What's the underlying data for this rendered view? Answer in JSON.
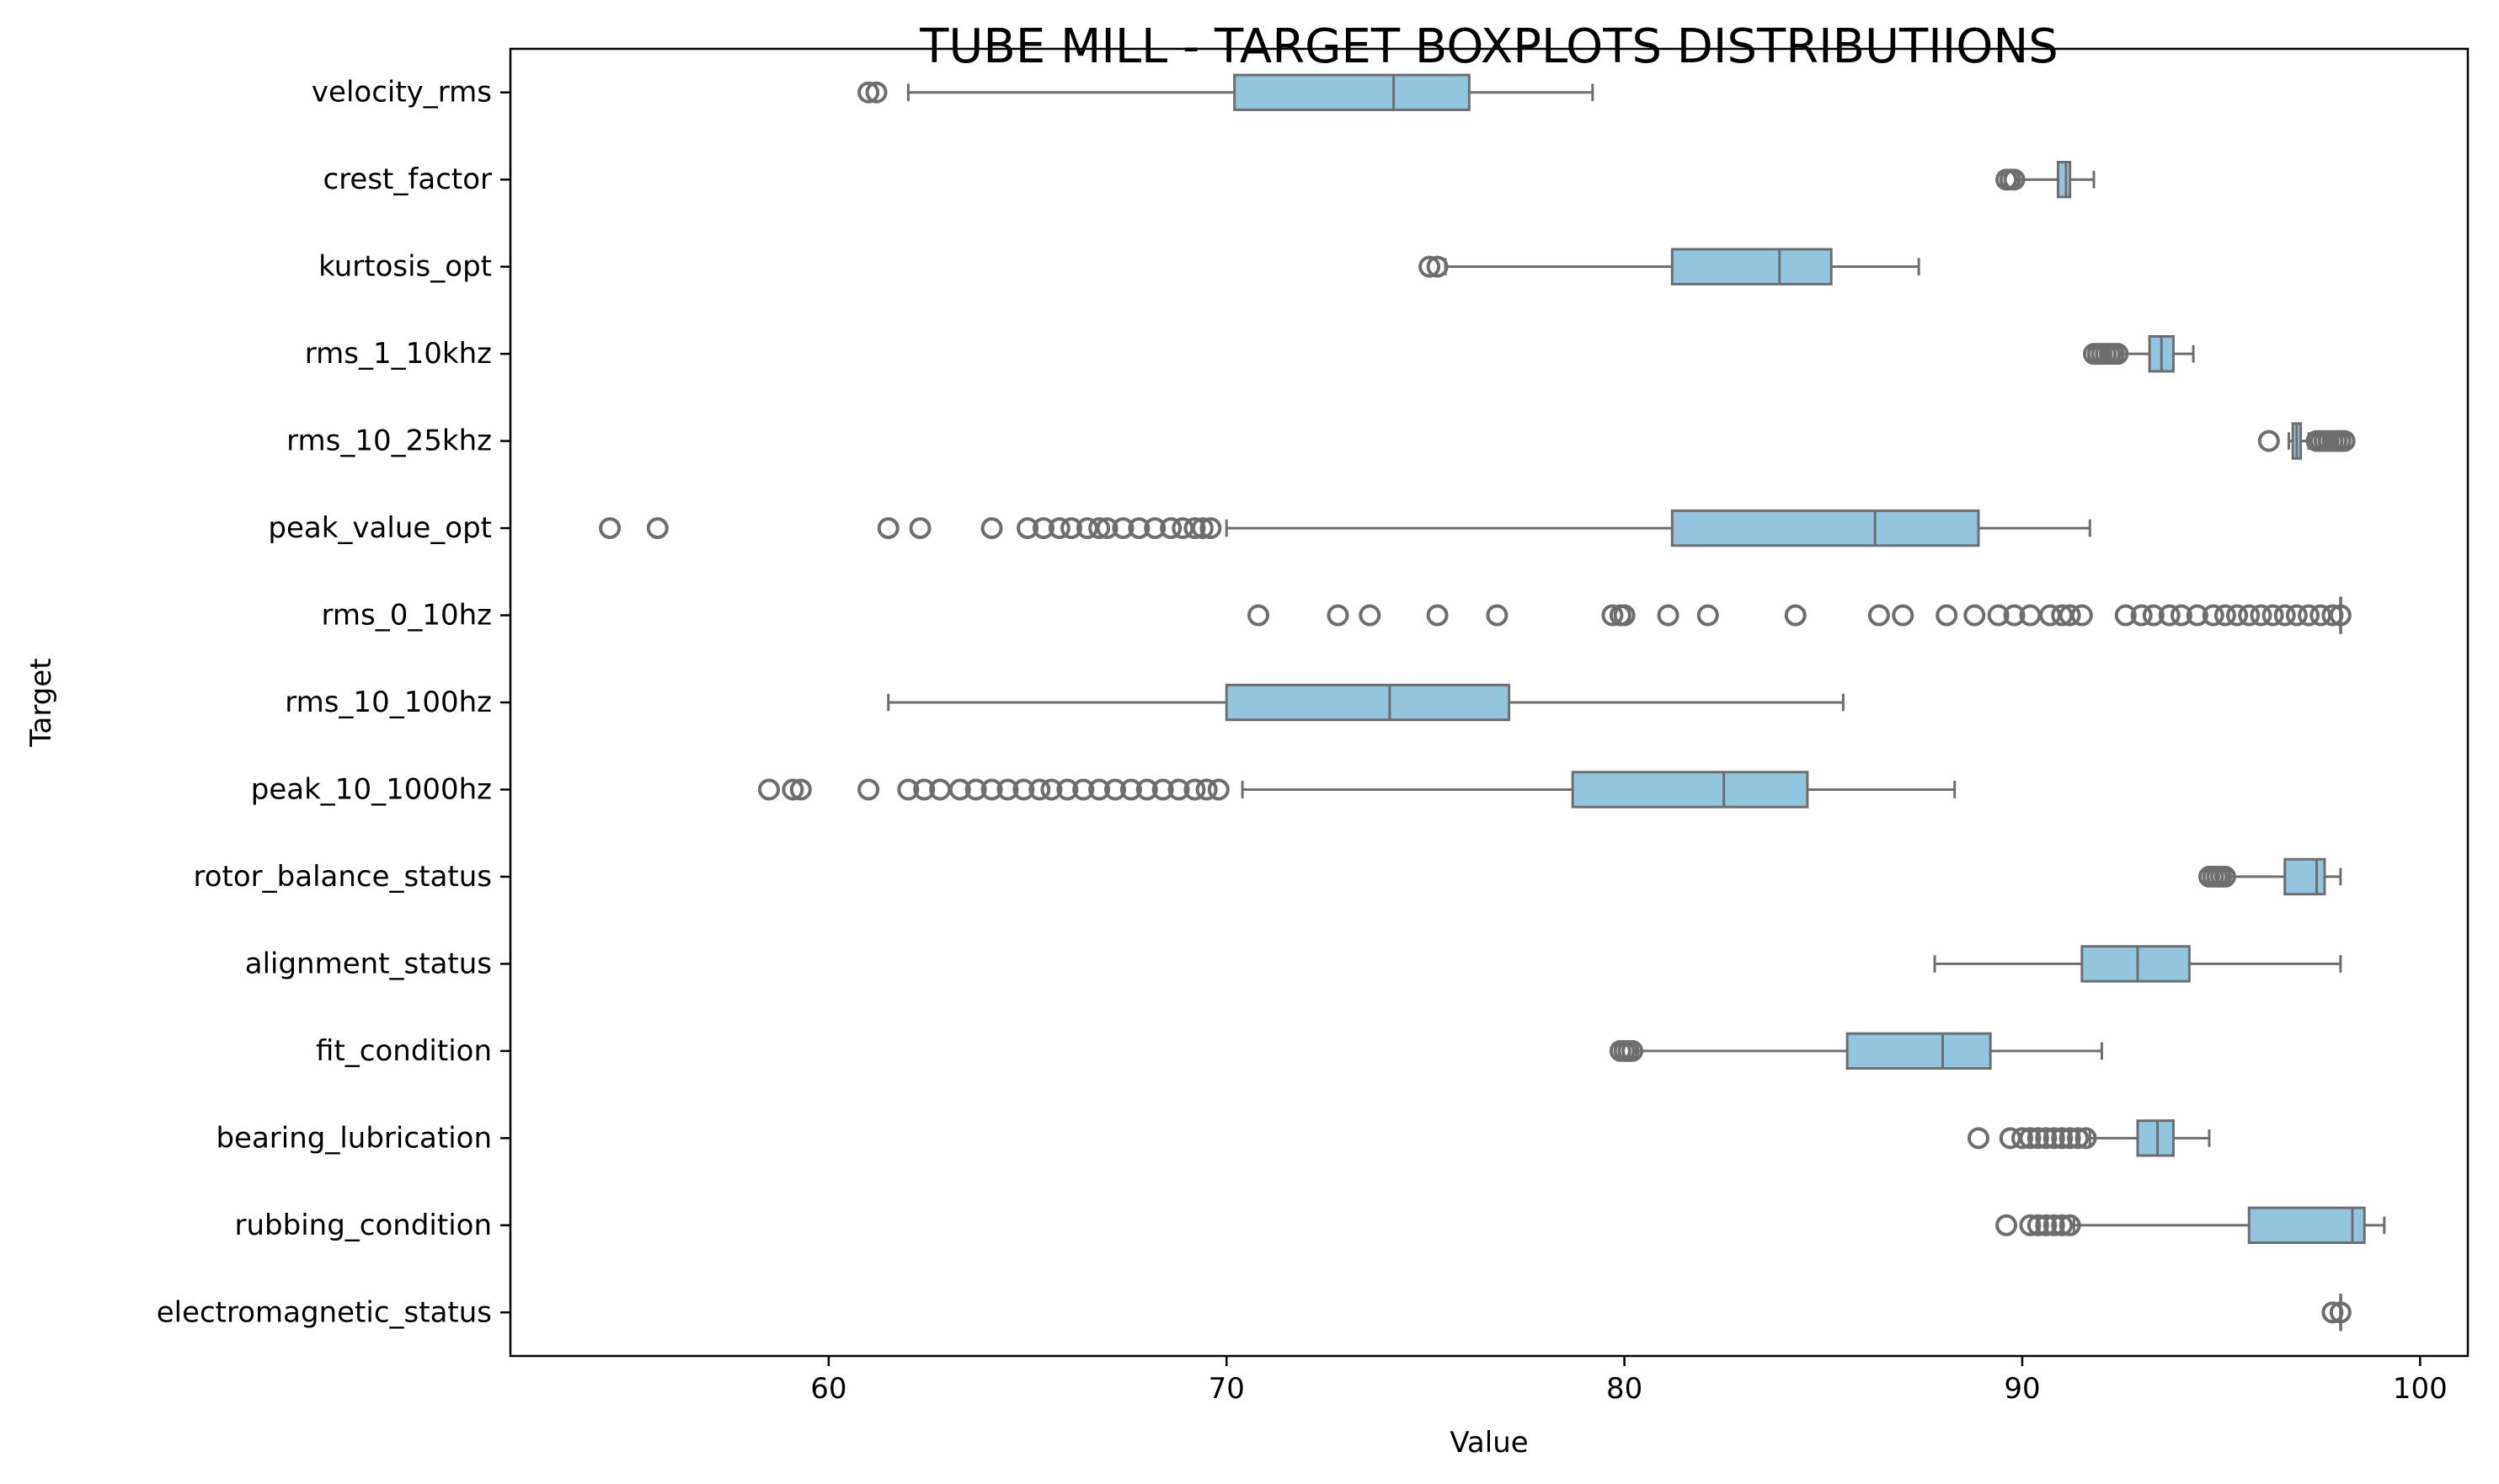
{
  "chart_data": {
    "type": "boxplot",
    "orientation": "horizontal",
    "title": "TUBE MILL - TARGET BOXPLOTS DISTRIBUTIIONS",
    "xlabel": "Value",
    "ylabel": "Target",
    "xlim": [
      52,
      101.2
    ],
    "xticks": [
      60,
      70,
      80,
      90,
      100
    ],
    "grid": false,
    "box_color": "#92c6df",
    "line_color": "#6e6e6e",
    "series": [
      {
        "name": "velocity_rms",
        "whisker_low": 62.0,
        "q1": 70.2,
        "median": 74.2,
        "q3": 76.1,
        "whisker_high": 79.2,
        "outliers": [
          61.0,
          61.2
        ]
      },
      {
        "name": "crest_factor",
        "whisker_low": 89.9,
        "q1": 90.9,
        "median": 91.1,
        "q3": 91.2,
        "whisker_high": 91.8,
        "outliers": [
          89.6,
          89.7,
          89.8
        ]
      },
      {
        "name": "kurtosis_opt",
        "whisker_low": 75.5,
        "q1": 81.2,
        "median": 83.9,
        "q3": 85.2,
        "whisker_high": 87.4,
        "outliers": [
          75.1,
          75.3
        ]
      },
      {
        "name": "rms_1_10khz",
        "whisker_low": 92.5,
        "q1": 93.2,
        "median": 93.5,
        "q3": 93.8,
        "whisker_high": 94.3,
        "outliers": [
          91.8,
          91.9,
          92.0,
          92.1,
          92.2,
          92.3,
          92.4
        ]
      },
      {
        "name": "rms_10_25khz",
        "whisker_low": 96.7,
        "q1": 96.8,
        "median": 96.9,
        "q3": 97.0,
        "whisker_high": 97.2,
        "outliers": [
          96.2,
          97.4,
          97.5,
          97.6,
          97.7,
          97.8,
          97.9,
          98.0,
          98.1
        ]
      },
      {
        "name": "peak_value_opt",
        "whisker_low": 70.0,
        "q1": 81.2,
        "median": 86.3,
        "q3": 88.9,
        "whisker_high": 91.7,
        "outliers": [
          54.5,
          55.7,
          61.5,
          62.3,
          64.1,
          65.0,
          65.4,
          65.8,
          66.1,
          66.5,
          66.8,
          67.0,
          67.4,
          67.8,
          68.2,
          68.6,
          68.9,
          69.2,
          69.4,
          69.6
        ]
      },
      {
        "name": "rms_0_10hz",
        "whisker_low": 98.0,
        "q1": 98.0,
        "median": 98.0,
        "q3": 98.0,
        "whisker_high": 98.0,
        "outliers": [
          70.8,
          72.8,
          73.6,
          75.3,
          76.8,
          79.7,
          79.9,
          80.0,
          81.1,
          82.1,
          84.3,
          86.4,
          87.0,
          88.1,
          88.8,
          89.4,
          89.8,
          90.2,
          90.7,
          91.0,
          91.2,
          91.5,
          92.6,
          93.0,
          93.3,
          93.7,
          94.0,
          94.4,
          94.8,
          95.1,
          95.4,
          95.7,
          96.0,
          96.3,
          96.6,
          96.9,
          97.2,
          97.5,
          97.8,
          98.0
        ]
      },
      {
        "name": "rms_10_100hz",
        "whisker_low": 61.5,
        "q1": 70.0,
        "median": 74.1,
        "q3": 77.1,
        "whisker_high": 85.5,
        "outliers": []
      },
      {
        "name": "peak_10_1000hz",
        "whisker_low": 70.4,
        "q1": 78.7,
        "median": 82.5,
        "q3": 84.6,
        "whisker_high": 88.3,
        "outliers": [
          58.5,
          59.1,
          59.3,
          61.0,
          62.0,
          62.4,
          62.8,
          63.3,
          63.7,
          64.1,
          64.5,
          64.9,
          65.3,
          65.6,
          66.0,
          66.4,
          66.8,
          67.2,
          67.6,
          68.0,
          68.4,
          68.8,
          69.2,
          69.5,
          69.8
        ]
      },
      {
        "name": "rotor_balance_status",
        "whisker_low": 95.2,
        "q1": 96.6,
        "median": 97.4,
        "q3": 97.6,
        "whisker_high": 98.0,
        "outliers": [
          94.7,
          94.8,
          94.9,
          95.0,
          95.1
        ]
      },
      {
        "name": "alignment_status",
        "whisker_low": 87.8,
        "q1": 91.5,
        "median": 92.9,
        "q3": 94.2,
        "whisker_high": 98.0,
        "outliers": []
      },
      {
        "name": "fit_condition",
        "whisker_low": 80.3,
        "q1": 85.6,
        "median": 88.0,
        "q3": 89.2,
        "whisker_high": 92.0,
        "outliers": [
          79.9,
          80.0,
          80.1,
          80.2
        ]
      },
      {
        "name": "bearing_lubrication",
        "whisker_low": 91.7,
        "q1": 92.9,
        "median": 93.4,
        "q3": 93.8,
        "whisker_high": 94.7,
        "outliers": [
          88.9,
          89.7,
          90.0,
          90.2,
          90.4,
          90.6,
          90.8,
          91.0,
          91.2,
          91.4,
          91.6
        ]
      },
      {
        "name": "rubbing_condition",
        "whisker_low": 91.3,
        "q1": 95.7,
        "median": 98.3,
        "q3": 98.6,
        "whisker_high": 99.1,
        "outliers": [
          89.6,
          90.2,
          90.4,
          90.6,
          90.8,
          91.0,
          91.2
        ]
      },
      {
        "name": "electromagnetic_status",
        "whisker_low": 98.0,
        "q1": 98.0,
        "median": 98.0,
        "q3": 98.0,
        "whisker_high": 98.0,
        "outliers": [
          97.8,
          98.0
        ]
      }
    ]
  }
}
